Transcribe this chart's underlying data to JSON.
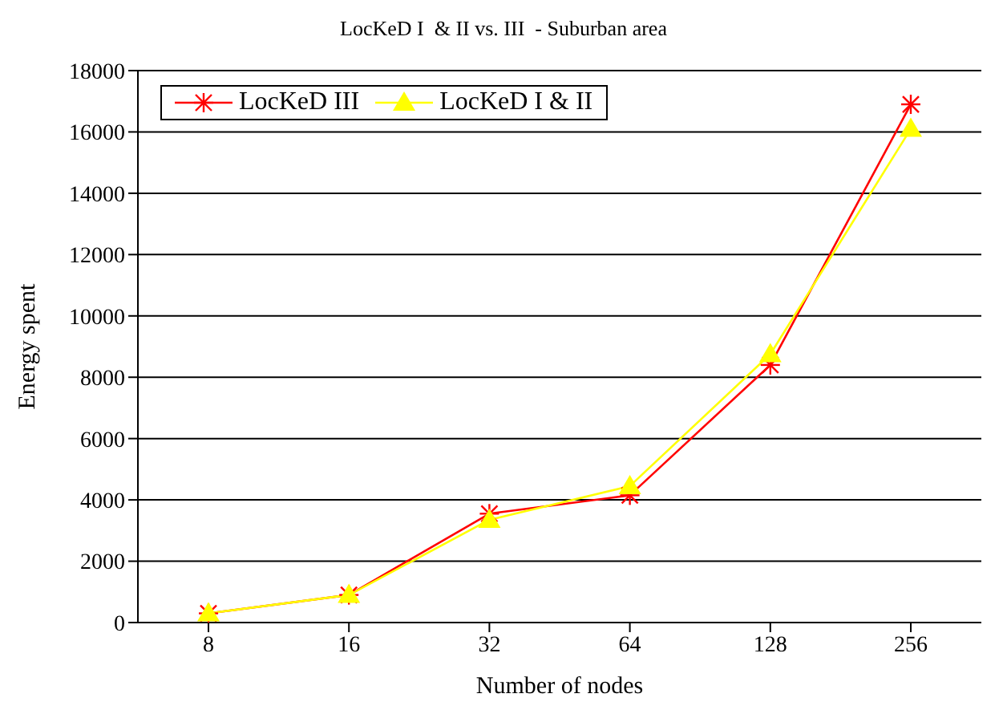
{
  "chart_data": {
    "type": "line",
    "title": "LocKeD I  & II vs. III  - Suburban area",
    "xlabel": "Number of nodes",
    "ylabel": "Energy spent",
    "categories": [
      "8",
      "16",
      "32",
      "64",
      "128",
      "256"
    ],
    "series": [
      {
        "name": "LocKeD III",
        "color": "#ff0000",
        "marker": "cross",
        "values": [
          300,
          900,
          3550,
          4150,
          8400,
          16900
        ]
      },
      {
        "name": "LocKeD I & II",
        "color": "#ffff00",
        "marker": "triangle",
        "values": [
          300,
          900,
          3350,
          4450,
          8750,
          16100
        ]
      }
    ],
    "ylim": [
      0,
      18000
    ],
    "yticks": [
      0,
      2000,
      4000,
      6000,
      8000,
      10000,
      12000,
      14000,
      16000,
      18000
    ],
    "grid": "y",
    "legend": "top left",
    "line_style": "solid"
  }
}
